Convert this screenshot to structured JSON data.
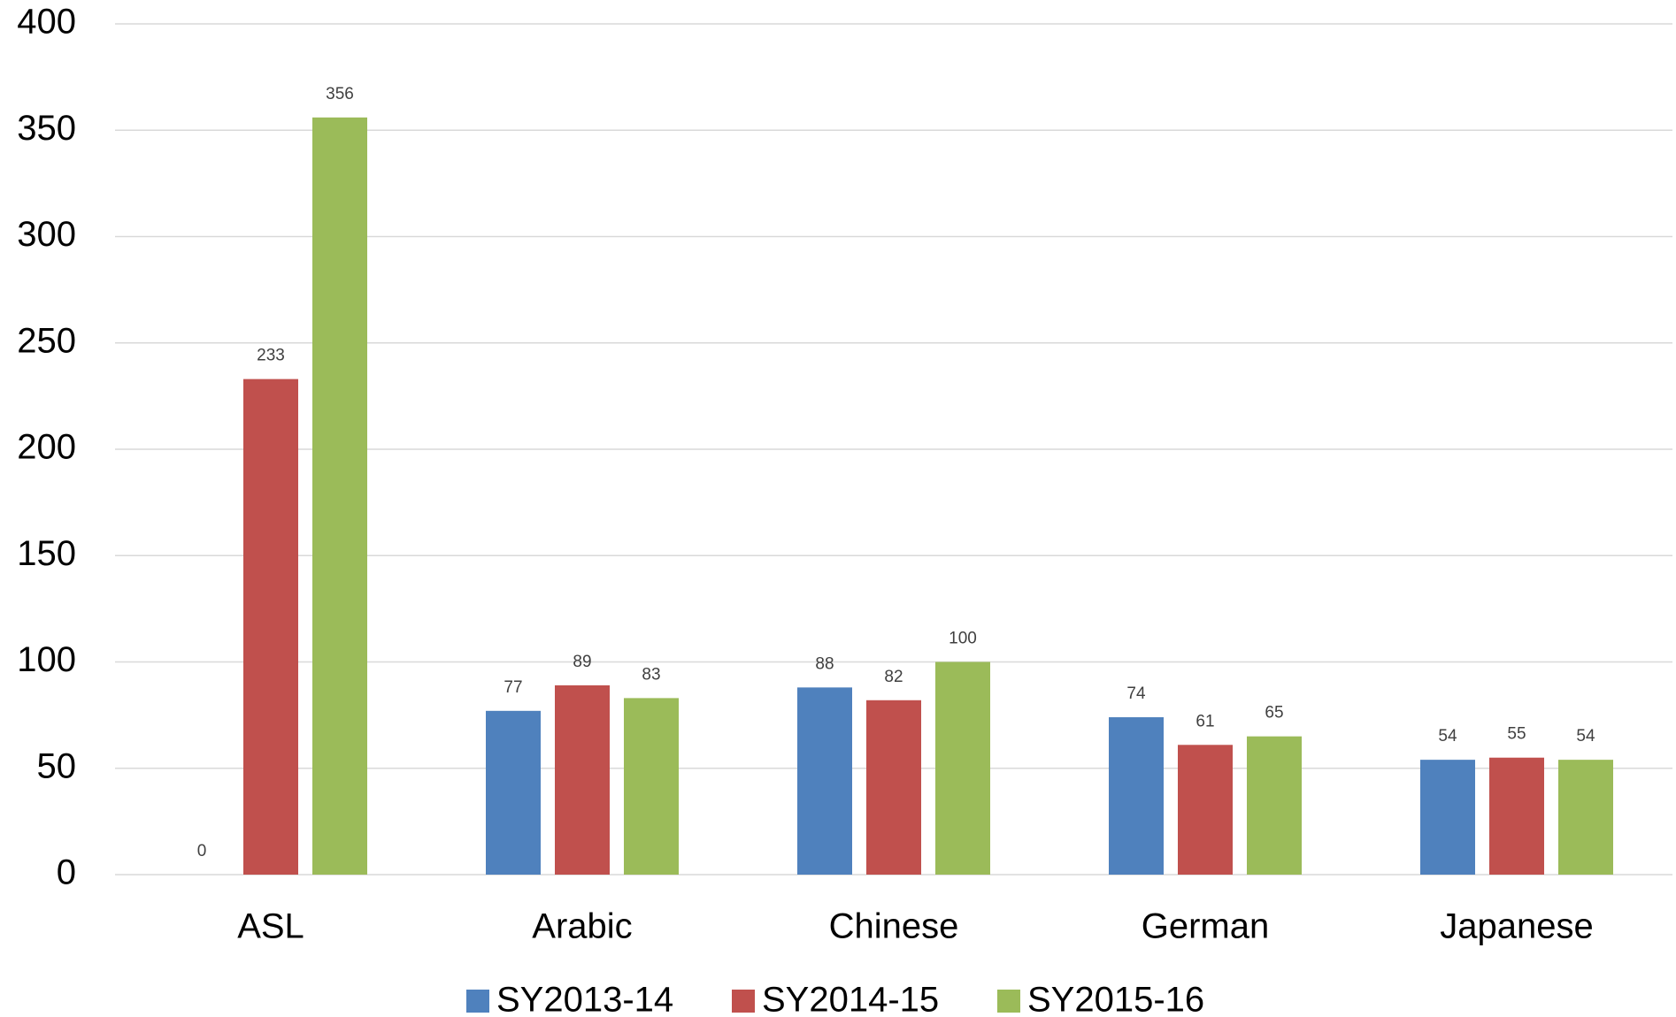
{
  "chart_data": {
    "type": "bar",
    "categories": [
      "ASL",
      "Arabic",
      "Chinese",
      "German",
      "Japanese"
    ],
    "series": [
      {
        "name": "SY2013-14",
        "color": "#4f81bd",
        "values": [
          0,
          77,
          88,
          74,
          54
        ]
      },
      {
        "name": "SY2014-15",
        "color": "#c0504d",
        "values": [
          233,
          89,
          82,
          61,
          55
        ]
      },
      {
        "name": "SY2015-16",
        "color": "#9bbb59",
        "values": [
          356,
          83,
          100,
          65,
          54
        ]
      }
    ],
    "ylim": [
      0,
      400
    ],
    "yticks": [
      0,
      50,
      100,
      150,
      200,
      250,
      300,
      350,
      400
    ],
    "grid": true,
    "legend": "bottom"
  }
}
